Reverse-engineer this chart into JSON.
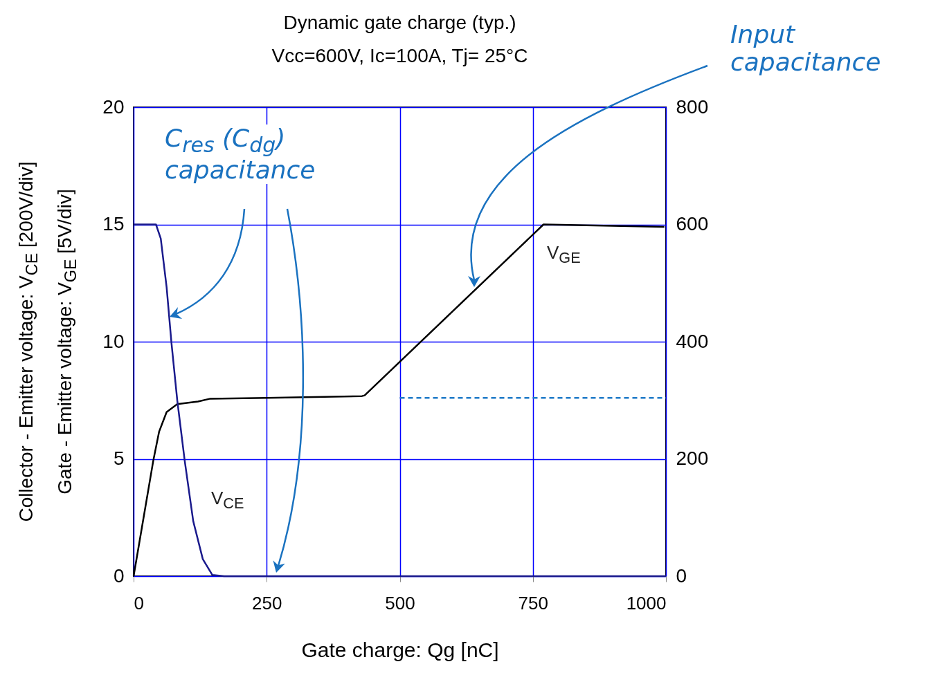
{
  "chart_data": {
    "type": "line",
    "title": "Dynamic gate charge  (typ.)",
    "subtitle": "Vcc=600V,   Ic=100A,   Tj= 25°C",
    "xlabel": "Gate charge: Qg [nC]",
    "ylabel": "Collector - Emitter voltage: V$_{CE}$ [200V/div]\nGate - Emitter voltage: V$_{GE}$ [5V/div]",
    "xlim": [
      0,
      1000
    ],
    "xticks": [
      0,
      250,
      500,
      750,
      1000
    ],
    "ylim": [
      0,
      20
    ],
    "yticks": [
      0,
      5,
      10,
      15,
      20
    ],
    "y2lim": [
      0,
      800
    ],
    "y2ticks": [
      0,
      200,
      400,
      600,
      800
    ],
    "grid": true,
    "annotations": [
      "Input capacitance",
      "C$_{res}$ (C$_{dg}$) capacitance"
    ],
    "series": [
      {
        "name": "V$_{GE}$",
        "color": "#000000",
        "x": [
          0,
          37,
          48,
          62,
          82,
          121,
          144,
          250,
          429,
          434,
          770,
          997
        ],
        "values": [
          0,
          4.93,
          6.17,
          7.0,
          7.34,
          7.45,
          7.57,
          7.6,
          7.68,
          7.71,
          15,
          14.9
        ]
      },
      {
        "name": "V$_{CE}$",
        "color": "#1a1a8c",
        "axis": "y2",
        "x": [
          0,
          42,
          51,
          62,
          71,
          82,
          96,
          112,
          130,
          148,
          170,
          1000
        ],
        "values": [
          600,
          600,
          576,
          493,
          399,
          300,
          197,
          94,
          29,
          2,
          0,
          0
        ]
      },
      {
        "type": "line",
        "color": "#1f7ac8",
        "line_style": "dashed",
        "x": [
          500,
          1000
        ],
        "values": [
          7.6,
          7.6
        ]
      }
    ]
  }
}
